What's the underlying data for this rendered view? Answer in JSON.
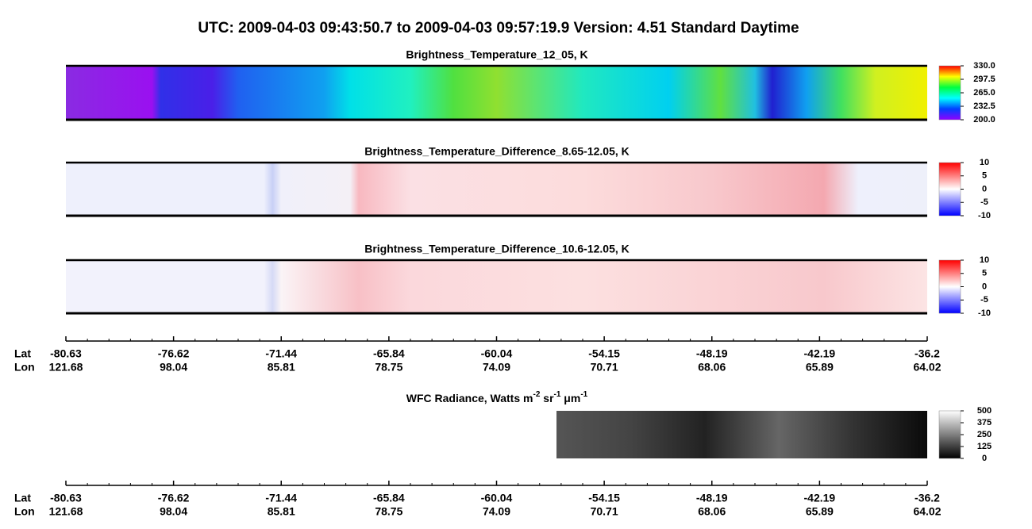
{
  "header": {
    "title": "UTC:  2009-04-03   09:43:50.7  to  2009-04-03   09:57:19.9    Version: 4.51  Standard Daytime"
  },
  "panels": [
    {
      "title": "Brightness_Temperature_12_05, K",
      "colorbar": {
        "lim": [
          200,
          330
        ],
        "ticks": [
          {
            "value": 330,
            "label": "330.0"
          },
          297.5,
          {
            "value": 265,
            "label": "265.0"
          },
          232.5,
          {
            "value": 200,
            "label": "200.0"
          }
        ]
      }
    },
    {
      "title": "Brightness_Temperature_Difference_8.65-12.05, K",
      "colorbar": {
        "lim": [
          -10,
          10
        ],
        "ticks": [
          10,
          5,
          0,
          -5,
          -10
        ]
      }
    },
    {
      "title": "Brightness_Temperature_Difference_10.6-12.05, K",
      "colorbar": {
        "lim": [
          -10,
          10
        ],
        "ticks": [
          10,
          5,
          0,
          -5,
          -10
        ]
      }
    },
    {
      "title_parts": [
        {
          "text": "WFC Radiance, Watts m"
        },
        {
          "text": "-2",
          "sup": true
        },
        {
          "text": " sr"
        },
        {
          "text": "-1",
          "sup": true
        },
        {
          "text": " μm"
        },
        {
          "text": "-1",
          "sup": true
        }
      ],
      "colorbar": {
        "lim": [
          0,
          500
        ],
        "ticks": [
          500,
          375,
          250,
          125,
          0
        ]
      }
    }
  ],
  "axes": [
    {
      "lat_label": "Lat",
      "lon_label": "Lon",
      "lat": [
        -80.63,
        -76.62,
        -71.44,
        -65.84,
        -60.04,
        -54.15,
        -48.19,
        -42.19,
        -36.2
      ],
      "lon": [
        121.68,
        98.04,
        85.81,
        78.75,
        74.09,
        70.71,
        68.06,
        65.89,
        64.02
      ]
    },
    {
      "lat_label": "Lat",
      "lon_label": "Lon",
      "lat": [
        -80.63,
        -76.62,
        -71.44,
        -65.84,
        -60.04,
        -54.15,
        -48.19,
        -42.19,
        -36.2
      ],
      "lon": [
        121.68,
        98.04,
        85.81,
        78.75,
        74.09,
        70.71,
        68.06,
        65.89,
        64.02
      ]
    }
  ]
}
